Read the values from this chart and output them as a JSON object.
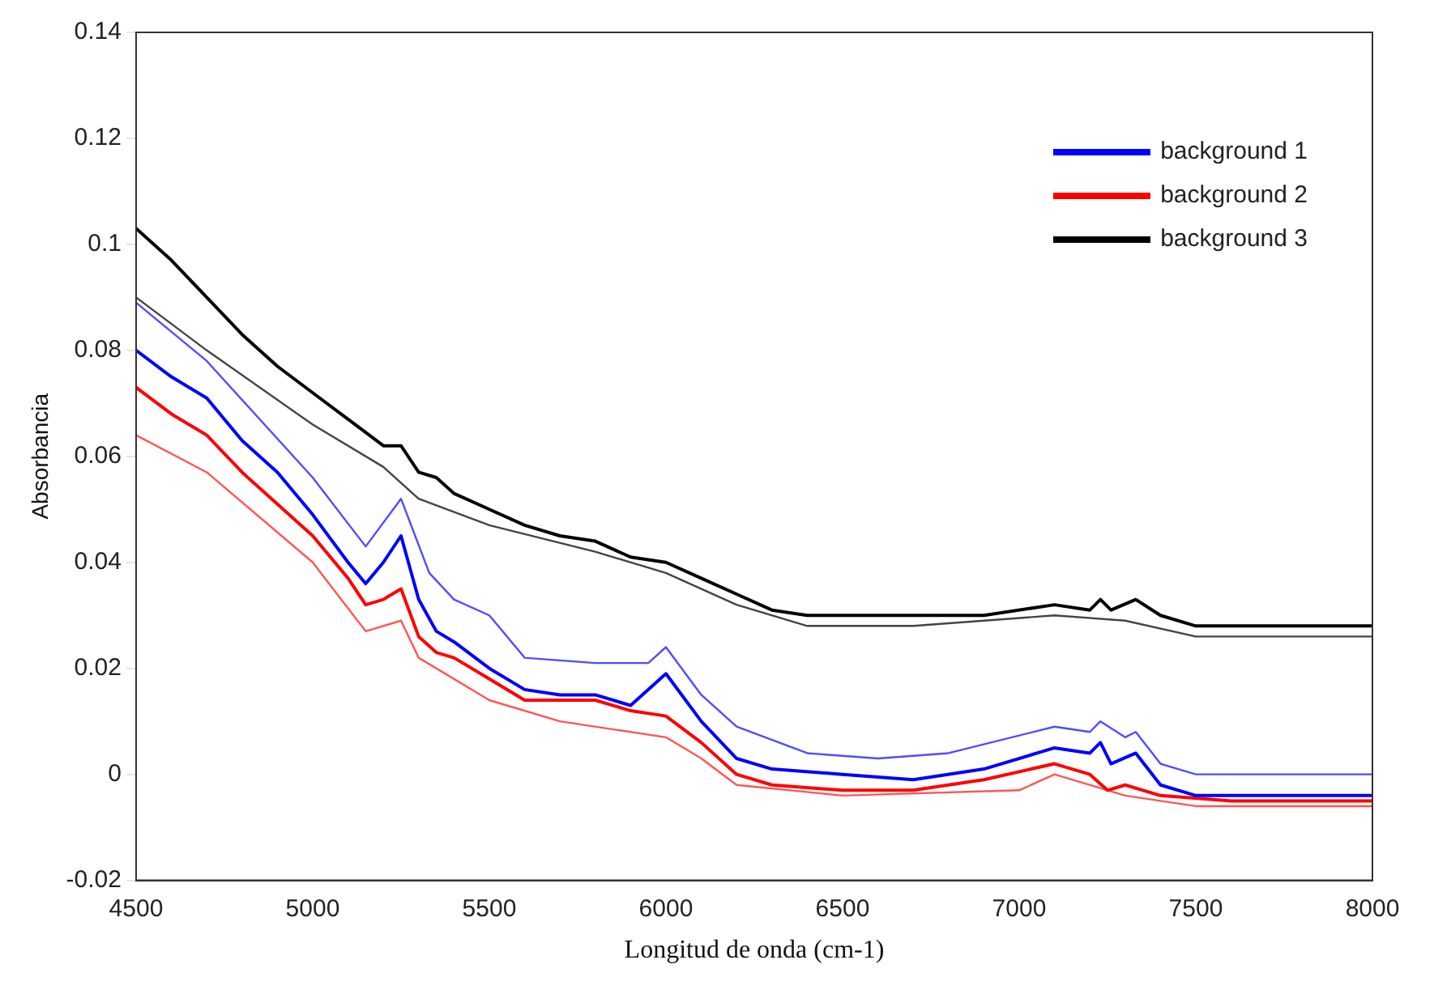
{
  "chart_data": {
    "type": "line",
    "xlabel": "Longitud de onda (cm-1)",
    "ylabel": "Absorbancia",
    "xlim": [
      4500,
      8000
    ],
    "xticks": [
      4500,
      5000,
      5500,
      6000,
      6500,
      7000,
      7500,
      8000
    ],
    "ylim": [
      -0.02,
      0.14
    ],
    "yticks": [
      -0.02,
      0,
      0.02,
      0.04,
      0.06,
      0.08,
      0.1,
      0.12,
      0.14
    ],
    "grid": false,
    "legend": "top right",
    "marker": "none",
    "line_style": "solid",
    "series": [
      {
        "name": "background 1",
        "color": "#0000ff",
        "x": [
          4500,
          4600,
          4700,
          4800,
          4900,
          5000,
          5100,
          5150,
          5200,
          5250,
          5300,
          5350,
          5400,
          5500,
          5600,
          5700,
          5800,
          5900,
          6000,
          6100,
          6200,
          6300,
          6500,
          6700,
          6900,
          7100,
          7200,
          7230,
          7260,
          7330,
          7400,
          7500,
          7700,
          8000
        ],
        "values": [
          0.08,
          0.075,
          0.071,
          0.063,
          0.057,
          0.049,
          0.04,
          0.036,
          0.04,
          0.045,
          0.033,
          0.027,
          0.025,
          0.02,
          0.016,
          0.015,
          0.015,
          0.013,
          0.019,
          0.01,
          0.003,
          0.001,
          0,
          -0.001,
          0.001,
          0.005,
          0.004,
          0.006,
          0.002,
          0.004,
          -0.002,
          -0.004,
          -0.004,
          -0.004
        ]
      },
      {
        "name": "background 2",
        "color": "#ff0000",
        "x": [
          4500,
          4600,
          4700,
          4800,
          4900,
          5000,
          5100,
          5150,
          5200,
          5250,
          5300,
          5350,
          5400,
          5500,
          5600,
          5700,
          5800,
          5900,
          6000,
          6100,
          6200,
          6300,
          6500,
          6700,
          6900,
          7100,
          7200,
          7250,
          7300,
          7400,
          7600,
          8000
        ],
        "values": [
          0.073,
          0.068,
          0.064,
          0.057,
          0.051,
          0.045,
          0.037,
          0.032,
          0.033,
          0.035,
          0.026,
          0.023,
          0.022,
          0.018,
          0.014,
          0.014,
          0.014,
          0.012,
          0.011,
          0.006,
          0,
          -0.002,
          -0.003,
          -0.003,
          -0.001,
          0.002,
          0,
          -0.003,
          -0.002,
          -0.004,
          -0.005,
          -0.005
        ]
      },
      {
        "name": "background 3",
        "color": "#000000",
        "x": [
          4500,
          4600,
          4700,
          4800,
          4900,
          5000,
          5100,
          5200,
          5250,
          5300,
          5350,
          5400,
          5500,
          5600,
          5700,
          5800,
          5900,
          6000,
          6100,
          6200,
          6300,
          6400,
          6500,
          6700,
          6900,
          7100,
          7200,
          7230,
          7260,
          7330,
          7400,
          7500,
          7700,
          8000
        ],
        "values": [
          0.103,
          0.097,
          0.09,
          0.083,
          0.077,
          0.072,
          0.067,
          0.062,
          0.062,
          0.057,
          0.056,
          0.053,
          0.05,
          0.047,
          0.045,
          0.044,
          0.041,
          0.04,
          0.037,
          0.034,
          0.031,
          0.03,
          0.03,
          0.03,
          0.03,
          0.032,
          0.031,
          0.033,
          0.031,
          0.033,
          0.03,
          0.028,
          0.028,
          0.028
        ]
      },
      {
        "color": "#4d4dff",
        "x": [
          4500,
          4700,
          5000,
          5150,
          5250,
          5330,
          5400,
          5500,
          5600,
          5800,
          5950,
          6000,
          6100,
          6200,
          6400,
          6600,
          6800,
          7100,
          7200,
          7230,
          7300,
          7330,
          7400,
          7500,
          8000
        ],
        "values": [
          0.089,
          0.078,
          0.056,
          0.043,
          0.052,
          0.038,
          0.033,
          0.03,
          0.022,
          0.021,
          0.021,
          0.024,
          0.015,
          0.009,
          0.004,
          0.003,
          0.004,
          0.009,
          0.008,
          0.01,
          0.007,
          0.008,
          0.002,
          0,
          0
        ]
      },
      {
        "color": "#ff5555",
        "x": [
          4500,
          4700,
          5000,
          5150,
          5250,
          5300,
          5500,
          5700,
          6000,
          6100,
          6200,
          6500,
          7000,
          7100,
          7300,
          7500,
          8000
        ],
        "values": [
          0.064,
          0.057,
          0.04,
          0.027,
          0.029,
          0.022,
          0.014,
          0.01,
          0.007,
          0.003,
          -0.002,
          -0.004,
          -0.003,
          0,
          -0.004,
          -0.006,
          -0.006
        ]
      },
      {
        "color": "#444444",
        "x": [
          4500,
          4700,
          5000,
          5200,
          5300,
          5500,
          5800,
          6000,
          6200,
          6400,
          6700,
          7100,
          7300,
          7500,
          8000
        ],
        "values": [
          0.09,
          0.08,
          0.066,
          0.058,
          0.052,
          0.047,
          0.042,
          0.038,
          0.032,
          0.028,
          0.028,
          0.03,
          0.029,
          0.026,
          0.026
        ]
      }
    ]
  }
}
